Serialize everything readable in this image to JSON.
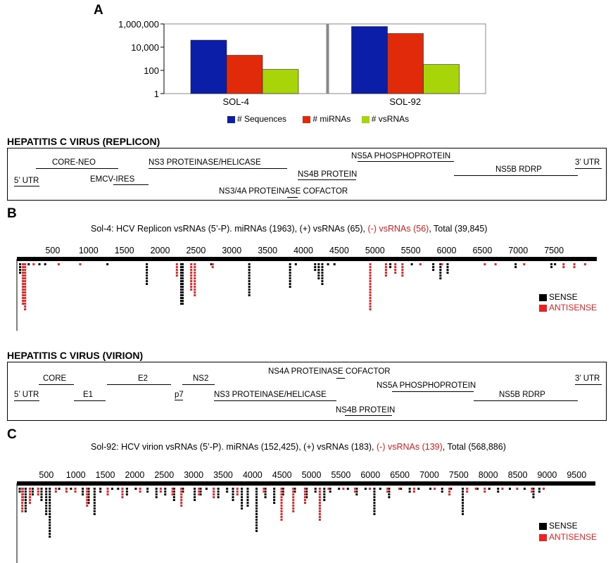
{
  "panel_a": {
    "letter": "A",
    "legend": [
      {
        "label": "# Sequences",
        "color": "#0a1ea8"
      },
      {
        "label": "# miRNAs",
        "color": "#e02a0a"
      },
      {
        "label": "# vsRNAs",
        "color": "#a8d40a"
      }
    ],
    "yticks": [
      "1,000,000",
      "10,000",
      "100",
      "1"
    ]
  },
  "replicon": {
    "title": "HEPATITIS C VIRUS (REPLICON)",
    "segments": [
      {
        "key": "utr5",
        "label": "5’ UTR"
      },
      {
        "key": "coreneo",
        "label": "CORE-NEO"
      },
      {
        "key": "emcv",
        "label": "EMCV-IRES"
      },
      {
        "key": "ns3",
        "label": "NS3 PROTEINASE/HELICASE"
      },
      {
        "key": "ns34a",
        "label": "NS3/4A PROTEINASE COFACTOR"
      },
      {
        "key": "ns4b",
        "label": "NS4B PROTEIN"
      },
      {
        "key": "ns5a",
        "label": "NS5A PHOSPHOPROTEIN"
      },
      {
        "key": "ns5b",
        "label": "NS5B RDRP"
      },
      {
        "key": "utr3",
        "label": "3’ UTR"
      }
    ]
  },
  "panel_b": {
    "letter": "B",
    "caption_prefix": "Sol-4: HCV Replicon vsRNAs (5’-P). miRNAs (1963), (+) vsRNAs (65), ",
    "caption_red": "(-) vsRNAs (56)",
    "caption_suffix": ", Total (39,845)",
    "sense_label": "SENSE",
    "antisense_label": "ANTISENSE",
    "sense_color": "#000000",
    "antisense_color": "#ee2222"
  },
  "virion": {
    "title": "HEPATITIS C VIRUS (VIRION)",
    "segments": [
      {
        "key": "core",
        "label": "CORE"
      },
      {
        "key": "utr5",
        "label": "5’ UTR"
      },
      {
        "key": "e1",
        "label": "E1"
      },
      {
        "key": "e2",
        "label": "E2"
      },
      {
        "key": "p7",
        "label": "p7"
      },
      {
        "key": "ns2",
        "label": "NS2"
      },
      {
        "key": "ns3",
        "label": "NS3 PROTEINASE/HELICASE"
      },
      {
        "key": "ns4a",
        "label": "NS4A PROTEINASE COFACTOR"
      },
      {
        "key": "ns4b",
        "label": "NS4B PROTEIN"
      },
      {
        "key": "ns5a",
        "label": "NS5A PHOSPHOPROTEIN"
      },
      {
        "key": "ns5b",
        "label": "NS5B RDRP"
      },
      {
        "key": "utr3",
        "label": "3’ UTR"
      }
    ]
  },
  "panel_c": {
    "letter": "C",
    "caption_prefix": "Sol-92: HCV virion vsRNAs (5’-P). miRNAs (152,425), (+) vsRNAs (183), ",
    "caption_red": "(-) vsRNAs (139)",
    "caption_suffix": ", Total (568,886)",
    "sense_label": "SENSE",
    "antisense_label": "ANTISENSE"
  },
  "chart_data": [
    {
      "type": "bar",
      "scale": "log",
      "categories": [
        "SOL-4",
        "SOL-92"
      ],
      "series": [
        {
          "name": "# Sequences",
          "values": [
            40000,
            600000
          ]
        },
        {
          "name": "# miRNAs",
          "values": [
            2000,
            150000
          ]
        },
        {
          "name": "# vsRNAs",
          "values": [
            121,
            322
          ]
        }
      ],
      "ylim": [
        1,
        1000000
      ],
      "yticks": [
        1,
        100,
        10000,
        1000000
      ]
    },
    {
      "type": "scatter",
      "description": "Sol-4 replicon vsRNA stacks",
      "x_ticks": [
        500,
        1000,
        1500,
        2000,
        2500,
        3000,
        3500,
        4000,
        4500,
        5000,
        5500,
        6000,
        6500,
        7000,
        7500
      ],
      "xlim": [
        0,
        8000
      ],
      "sense": [
        [
          30,
          4
        ],
        [
          150,
          1
        ],
        [
          300,
          1
        ],
        [
          380,
          1
        ],
        [
          1250,
          1
        ],
        [
          1800,
          8
        ],
        [
          2280,
          15
        ],
        [
          2300,
          15
        ],
        [
          2700,
          1
        ],
        [
          3230,
          12
        ],
        [
          3800,
          9
        ],
        [
          3880,
          1
        ],
        [
          4150,
          3
        ],
        [
          4200,
          6
        ],
        [
          4250,
          8
        ],
        [
          4330,
          1
        ],
        [
          4420,
          1
        ],
        [
          5200,
          2
        ],
        [
          5500,
          1
        ],
        [
          5800,
          3
        ],
        [
          5900,
          6
        ],
        [
          6000,
          4
        ],
        [
          6950,
          2
        ],
        [
          7450,
          2
        ],
        [
          7500,
          1
        ]
      ],
      "antisense": [
        [
          50,
          15
        ],
        [
          80,
          17
        ],
        [
          200,
          1
        ],
        [
          550,
          1
        ],
        [
          850,
          1
        ],
        [
          2200,
          5
        ],
        [
          2400,
          10
        ],
        [
          2450,
          12
        ],
        [
          2700,
          2
        ],
        [
          4900,
          17
        ],
        [
          5120,
          5
        ],
        [
          5250,
          4
        ],
        [
          5350,
          5
        ],
        [
          5600,
          1
        ],
        [
          5900,
          1
        ],
        [
          6500,
          1
        ],
        [
          6650,
          1
        ],
        [
          7050,
          1
        ],
        [
          7600,
          2
        ],
        [
          7750,
          2
        ],
        [
          7900,
          1
        ]
      ]
    },
    {
      "type": "scatter",
      "description": "Sol-92 virion vsRNA stacks",
      "x_ticks": [
        500,
        1000,
        1500,
        2000,
        2500,
        3000,
        3500,
        4000,
        4500,
        5000,
        5500,
        6000,
        6500,
        7000,
        7500,
        8000,
        8500,
        9000,
        9500
      ],
      "xlim": [
        0,
        9700
      ],
      "sense": [
        [
          30,
          2
        ],
        [
          80,
          5
        ],
        [
          130,
          9
        ],
        [
          250,
          3
        ],
        [
          400,
          5
        ],
        [
          480,
          10
        ],
        [
          540,
          18
        ],
        [
          700,
          1
        ],
        [
          900,
          1
        ],
        [
          1100,
          3
        ],
        [
          1200,
          6
        ],
        [
          1300,
          10
        ],
        [
          1400,
          2
        ],
        [
          1600,
          1
        ],
        [
          1700,
          1
        ],
        [
          1850,
          3
        ],
        [
          2000,
          1
        ],
        [
          2200,
          2
        ],
        [
          2350,
          4
        ],
        [
          2500,
          3
        ],
        [
          2650,
          5
        ],
        [
          2800,
          2
        ],
        [
          3000,
          5
        ],
        [
          3100,
          3
        ],
        [
          3200,
          1
        ],
        [
          3400,
          4
        ],
        [
          3550,
          2
        ],
        [
          3650,
          5
        ],
        [
          3800,
          8
        ],
        [
          3900,
          7
        ],
        [
          4050,
          16
        ],
        [
          4200,
          4
        ],
        [
          4350,
          6
        ],
        [
          4500,
          3
        ],
        [
          4700,
          2
        ],
        [
          4900,
          4
        ],
        [
          5050,
          2
        ],
        [
          5200,
          5
        ],
        [
          5300,
          2
        ],
        [
          5450,
          1
        ],
        [
          5600,
          1
        ],
        [
          5750,
          3
        ],
        [
          5900,
          1
        ],
        [
          6050,
          10
        ],
        [
          6150,
          1
        ],
        [
          6300,
          4
        ],
        [
          6500,
          1
        ],
        [
          6650,
          2
        ],
        [
          6800,
          1
        ],
        [
          7000,
          1
        ],
        [
          7200,
          2
        ],
        [
          7350,
          1
        ],
        [
          7550,
          10
        ],
        [
          7800,
          1
        ],
        [
          8000,
          1
        ],
        [
          8150,
          2
        ],
        [
          8350,
          1
        ],
        [
          8600,
          1
        ],
        [
          8750,
          4
        ],
        [
          8850,
          2
        ]
      ],
      "antisense": [
        [
          50,
          9
        ],
        [
          180,
          6
        ],
        [
          320,
          3
        ],
        [
          620,
          2
        ],
        [
          800,
          2
        ],
        [
          950,
          2
        ],
        [
          1150,
          7
        ],
        [
          1500,
          3
        ],
        [
          1750,
          4
        ],
        [
          2050,
          2
        ],
        [
          2400,
          2
        ],
        [
          2600,
          3
        ],
        [
          2750,
          7
        ],
        [
          3050,
          3
        ],
        [
          3300,
          4
        ],
        [
          3700,
          3
        ],
        [
          4150,
          2
        ],
        [
          4450,
          12
        ],
        [
          4650,
          9
        ],
        [
          4850,
          6
        ],
        [
          5100,
          12
        ],
        [
          5250,
          1
        ],
        [
          5500,
          1
        ],
        [
          5700,
          2
        ],
        [
          5950,
          1
        ],
        [
          6250,
          2
        ],
        [
          6450,
          1
        ],
        [
          6700,
          2
        ],
        [
          7050,
          1
        ],
        [
          7300,
          3
        ],
        [
          7600,
          2
        ],
        [
          7750,
          1
        ],
        [
          7900,
          2
        ],
        [
          8200,
          1
        ],
        [
          8450,
          1
        ],
        [
          8700,
          2
        ],
        [
          8900,
          1
        ]
      ]
    }
  ]
}
